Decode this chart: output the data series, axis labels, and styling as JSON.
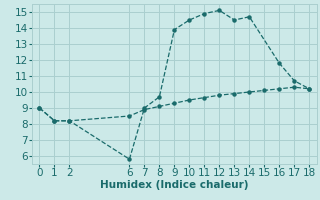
{
  "xlabel": "Humidex (Indice chaleur)",
  "bg_color": "#cce9e8",
  "grid_color": "#aacfcf",
  "line_color": "#1a6b6b",
  "line1_x": [
    0,
    1,
    2,
    6,
    7,
    8,
    9,
    10,
    11,
    12,
    13,
    14,
    16,
    17,
    18
  ],
  "line1_y": [
    9.0,
    8.2,
    8.2,
    5.8,
    9.0,
    9.7,
    13.9,
    14.5,
    14.9,
    15.1,
    14.5,
    14.7,
    11.8,
    10.7,
    10.2
  ],
  "line2_x": [
    0,
    1,
    2,
    6,
    7,
    8,
    9,
    10,
    11,
    12,
    13,
    14,
    15,
    16,
    17,
    18
  ],
  "line2_y": [
    9.0,
    8.2,
    8.2,
    8.5,
    8.9,
    9.1,
    9.3,
    9.5,
    9.65,
    9.8,
    9.9,
    10.0,
    10.1,
    10.2,
    10.3,
    10.2
  ],
  "xlim": [
    -0.5,
    18.5
  ],
  "ylim": [
    5.5,
    15.5
  ],
  "xticks": [
    0,
    1,
    2,
    6,
    7,
    8,
    9,
    10,
    11,
    12,
    13,
    14,
    15,
    16,
    17,
    18
  ],
  "yticks": [
    6,
    7,
    8,
    9,
    10,
    11,
    12,
    13,
    14,
    15
  ],
  "tick_fontsize": 7.5,
  "xlabel_fontsize": 7.5
}
